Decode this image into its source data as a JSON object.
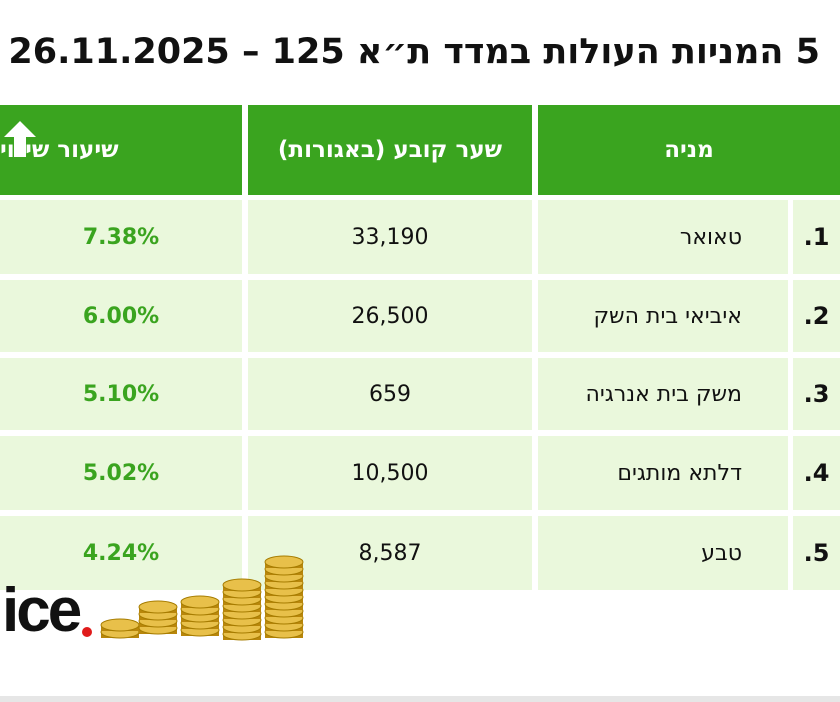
{
  "header": {
    "title": "5 המניות העולות במדד ת״א 125 – 26.11.2025"
  },
  "table": {
    "headers": [
      "מניה",
      "שער קובע (באגורות)",
      "שיעור שינוי"
    ],
    "rows": [
      [
        "1.",
        "טאואר",
        "33,190",
        "7.38%"
      ],
      [
        "2.",
        "איביאי בית השק",
        "26,500",
        "6.00%"
      ],
      [
        "3.",
        "משק בית אנרגיה",
        "659",
        "5.10%"
      ],
      [
        "4.",
        "דלתא מותגים",
        "10,500",
        "5.02%"
      ],
      [
        "5.",
        "טבע",
        "8,587",
        "4.24%"
      ]
    ]
  },
  "logo": {
    "text": "ice"
  }
}
